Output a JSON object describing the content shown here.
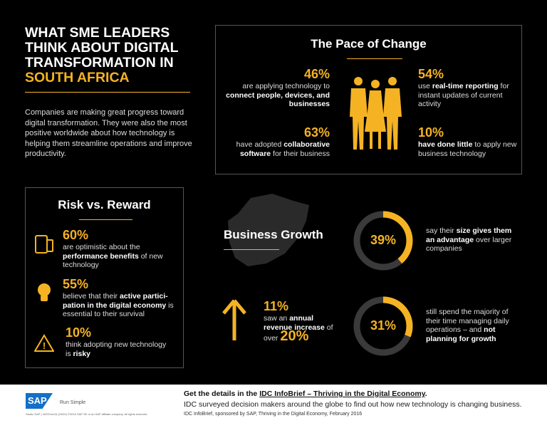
{
  "header": {
    "title_line1": "What SME leaders think about digital transformation in",
    "title_highlight": "South Africa",
    "intro": "Companies are making great progress toward digital transformation. They were also the most positive worldwide about how technology is helping them streamline operations and improve productivity."
  },
  "pace": {
    "title": "The Pace of Change",
    "stats": [
      {
        "pct": "46%",
        "pre": "are applying technology to ",
        "bold": "connect people, devices, and businesses",
        "post": ""
      },
      {
        "pct": "63%",
        "pre": "have adopted ",
        "bold": "collaborative software",
        "post": " for their business"
      },
      {
        "pct": "54%",
        "pre": "use ",
        "bold": "real-time reporting",
        "post": " for instant updates of current activity"
      },
      {
        "pct": "10%",
        "pre": "",
        "bold": "have done little",
        "post": " to apply new business technology"
      }
    ]
  },
  "risk": {
    "title": "Risk vs. Reward",
    "stats": [
      {
        "pct": "60%",
        "pre": "are optimistic about the ",
        "bold": "performance benefits",
        "post": " of new technology",
        "icon": "tablet-phone-icon"
      },
      {
        "pct": "55%",
        "pre": "believe that their ",
        "bold": "active partici-pation in the digital economy",
        "post": " is essential to their survival",
        "icon": "lightbulb-icon"
      },
      {
        "pct": "10%",
        "pre": "think adopting new technology is ",
        "bold": "risky",
        "post": "",
        "icon": "warning-icon"
      }
    ]
  },
  "growth": {
    "title": "Business Growth",
    "revenue": {
      "pct": "11%",
      "pre": "saw an ",
      "bold": "annual revenue increase",
      "post": " of over",
      "value": "20%"
    },
    "rings": [
      {
        "pct": "39%",
        "value": 39,
        "pre": "say their ",
        "bold": "size gives them an advantage",
        "post": " over larger companies"
      },
      {
        "pct": "31%",
        "value": 31,
        "pre": "still spend the majority of their time managing daily operations – and ",
        "bold": "not planning for growth",
        "post": ""
      }
    ]
  },
  "footer": {
    "logo": "SAP",
    "tagline": "Run Simple",
    "fine_print": "Studio SAP | 42937enZA (16/02) ©2016 SAP SE or an SAP affiliate company. All rights reserved.",
    "cta_pre": "Get the details in the ",
    "cta_link": "IDC InfoBrief – Thriving in the Digital Economy",
    "cta_post": ".",
    "desc": "IDC surveyed decision makers around the globe to find out how new technology is changing business.",
    "source": "IDC InfoBrief, sponsored by SAP, Thriving in the Digital Economy, February 2016"
  },
  "colors": {
    "accent": "#f5b323",
    "background": "#000000",
    "ring_track": "#3a3a3a"
  }
}
